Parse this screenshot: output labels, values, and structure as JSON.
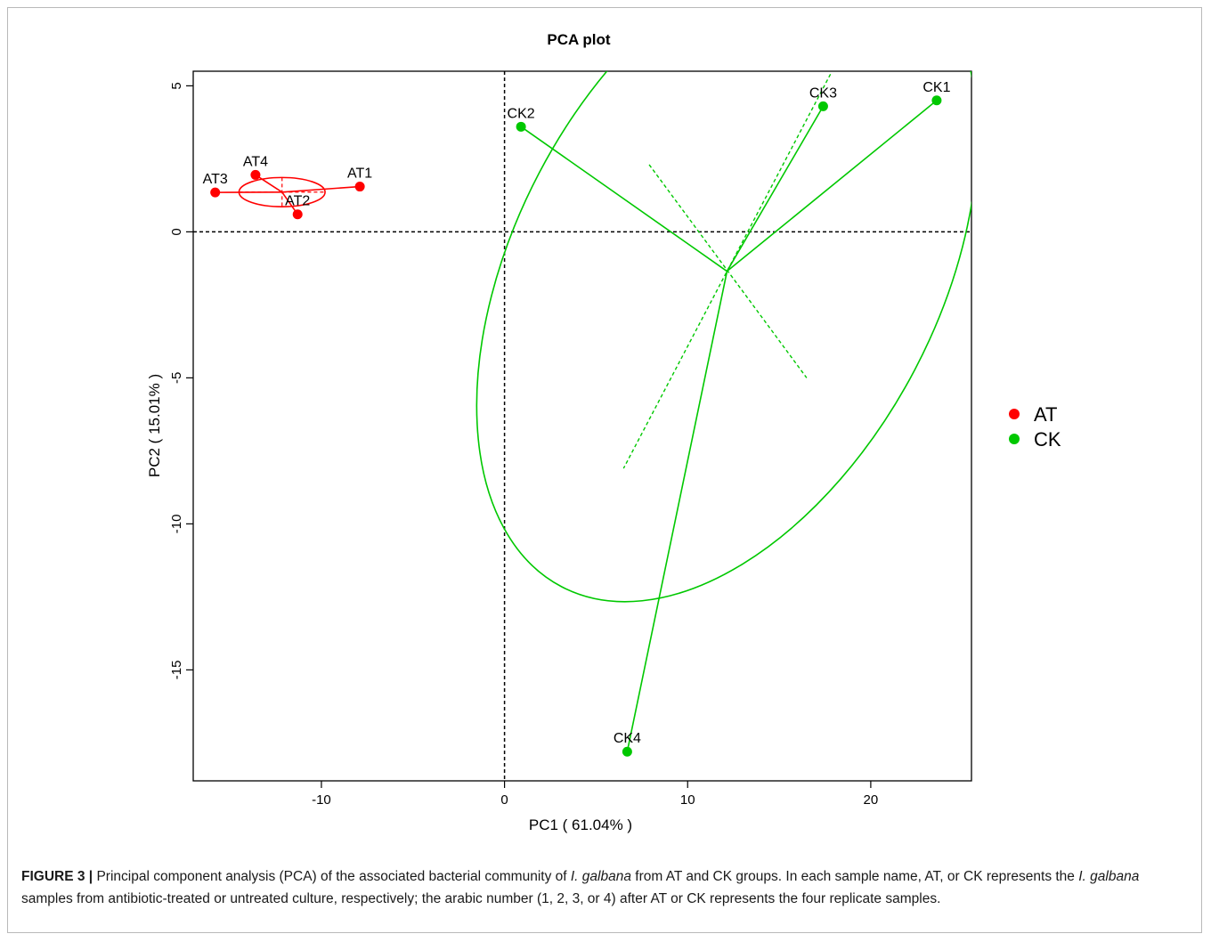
{
  "chart_data": {
    "type": "scatter",
    "title": "PCA plot",
    "xlabel": "PC1 ( 61.04% )",
    "ylabel": "PC2 ( 15.01% )",
    "xlim": [
      -17,
      25.5
    ],
    "ylim": [
      -18.8,
      5.5
    ],
    "xticks": [
      -10,
      0,
      10,
      20
    ],
    "yticks": [
      5,
      0,
      -5,
      -10,
      -15
    ],
    "grid": false,
    "reference_lines": {
      "x": 0,
      "y": 0
    },
    "legend": {
      "position": "right"
    },
    "series": [
      {
        "name": "AT",
        "color": "#ff0000",
        "points": [
          {
            "label": "AT1",
            "x": -7.9,
            "y": 1.55
          },
          {
            "label": "AT2",
            "x": -11.3,
            "y": 0.6
          },
          {
            "label": "AT3",
            "x": -15.8,
            "y": 1.35
          },
          {
            "label": "AT4",
            "x": -13.6,
            "y": 1.95
          }
        ],
        "centroid": {
          "x": -12.15,
          "y": 1.36
        },
        "ellipse": {
          "cx": -12.15,
          "cy": 1.36,
          "rx": 2.35,
          "ry": 0.5,
          "angle_deg": 0
        }
      },
      {
        "name": "CK",
        "color": "#00c800",
        "points": [
          {
            "label": "CK1",
            "x": 23.6,
            "y": 4.5
          },
          {
            "label": "CK2",
            "x": 0.9,
            "y": 3.6
          },
          {
            "label": "CK3",
            "x": 17.4,
            "y": 4.3
          },
          {
            "label": "CK4",
            "x": 6.7,
            "y": -17.8
          }
        ],
        "centroid": {
          "x": 12.15,
          "y": -1.35
        },
        "ellipse": {
          "cx": 12.15,
          "cy": -1.35,
          "axis1": [
            17.8,
            5.4,
            6.5,
            -8.1
          ],
          "axis2": [
            7.9,
            2.3,
            16.5,
            -5.0
          ]
        }
      }
    ]
  },
  "caption": {
    "figure_label": "FIGURE 3 |",
    "part1": " Principal component analysis (PCA) of the associated bacterial community of ",
    "species1": "I. galbana",
    "part2": " from AT and CK groups. In each sample name, AT, or CK represents the ",
    "species2": "I. galbana",
    "part3": " samples from antibiotic-treated or untreated culture, respectively; the arabic number (1, 2, 3, or 4) after AT or CK represents the four replicate samples."
  }
}
